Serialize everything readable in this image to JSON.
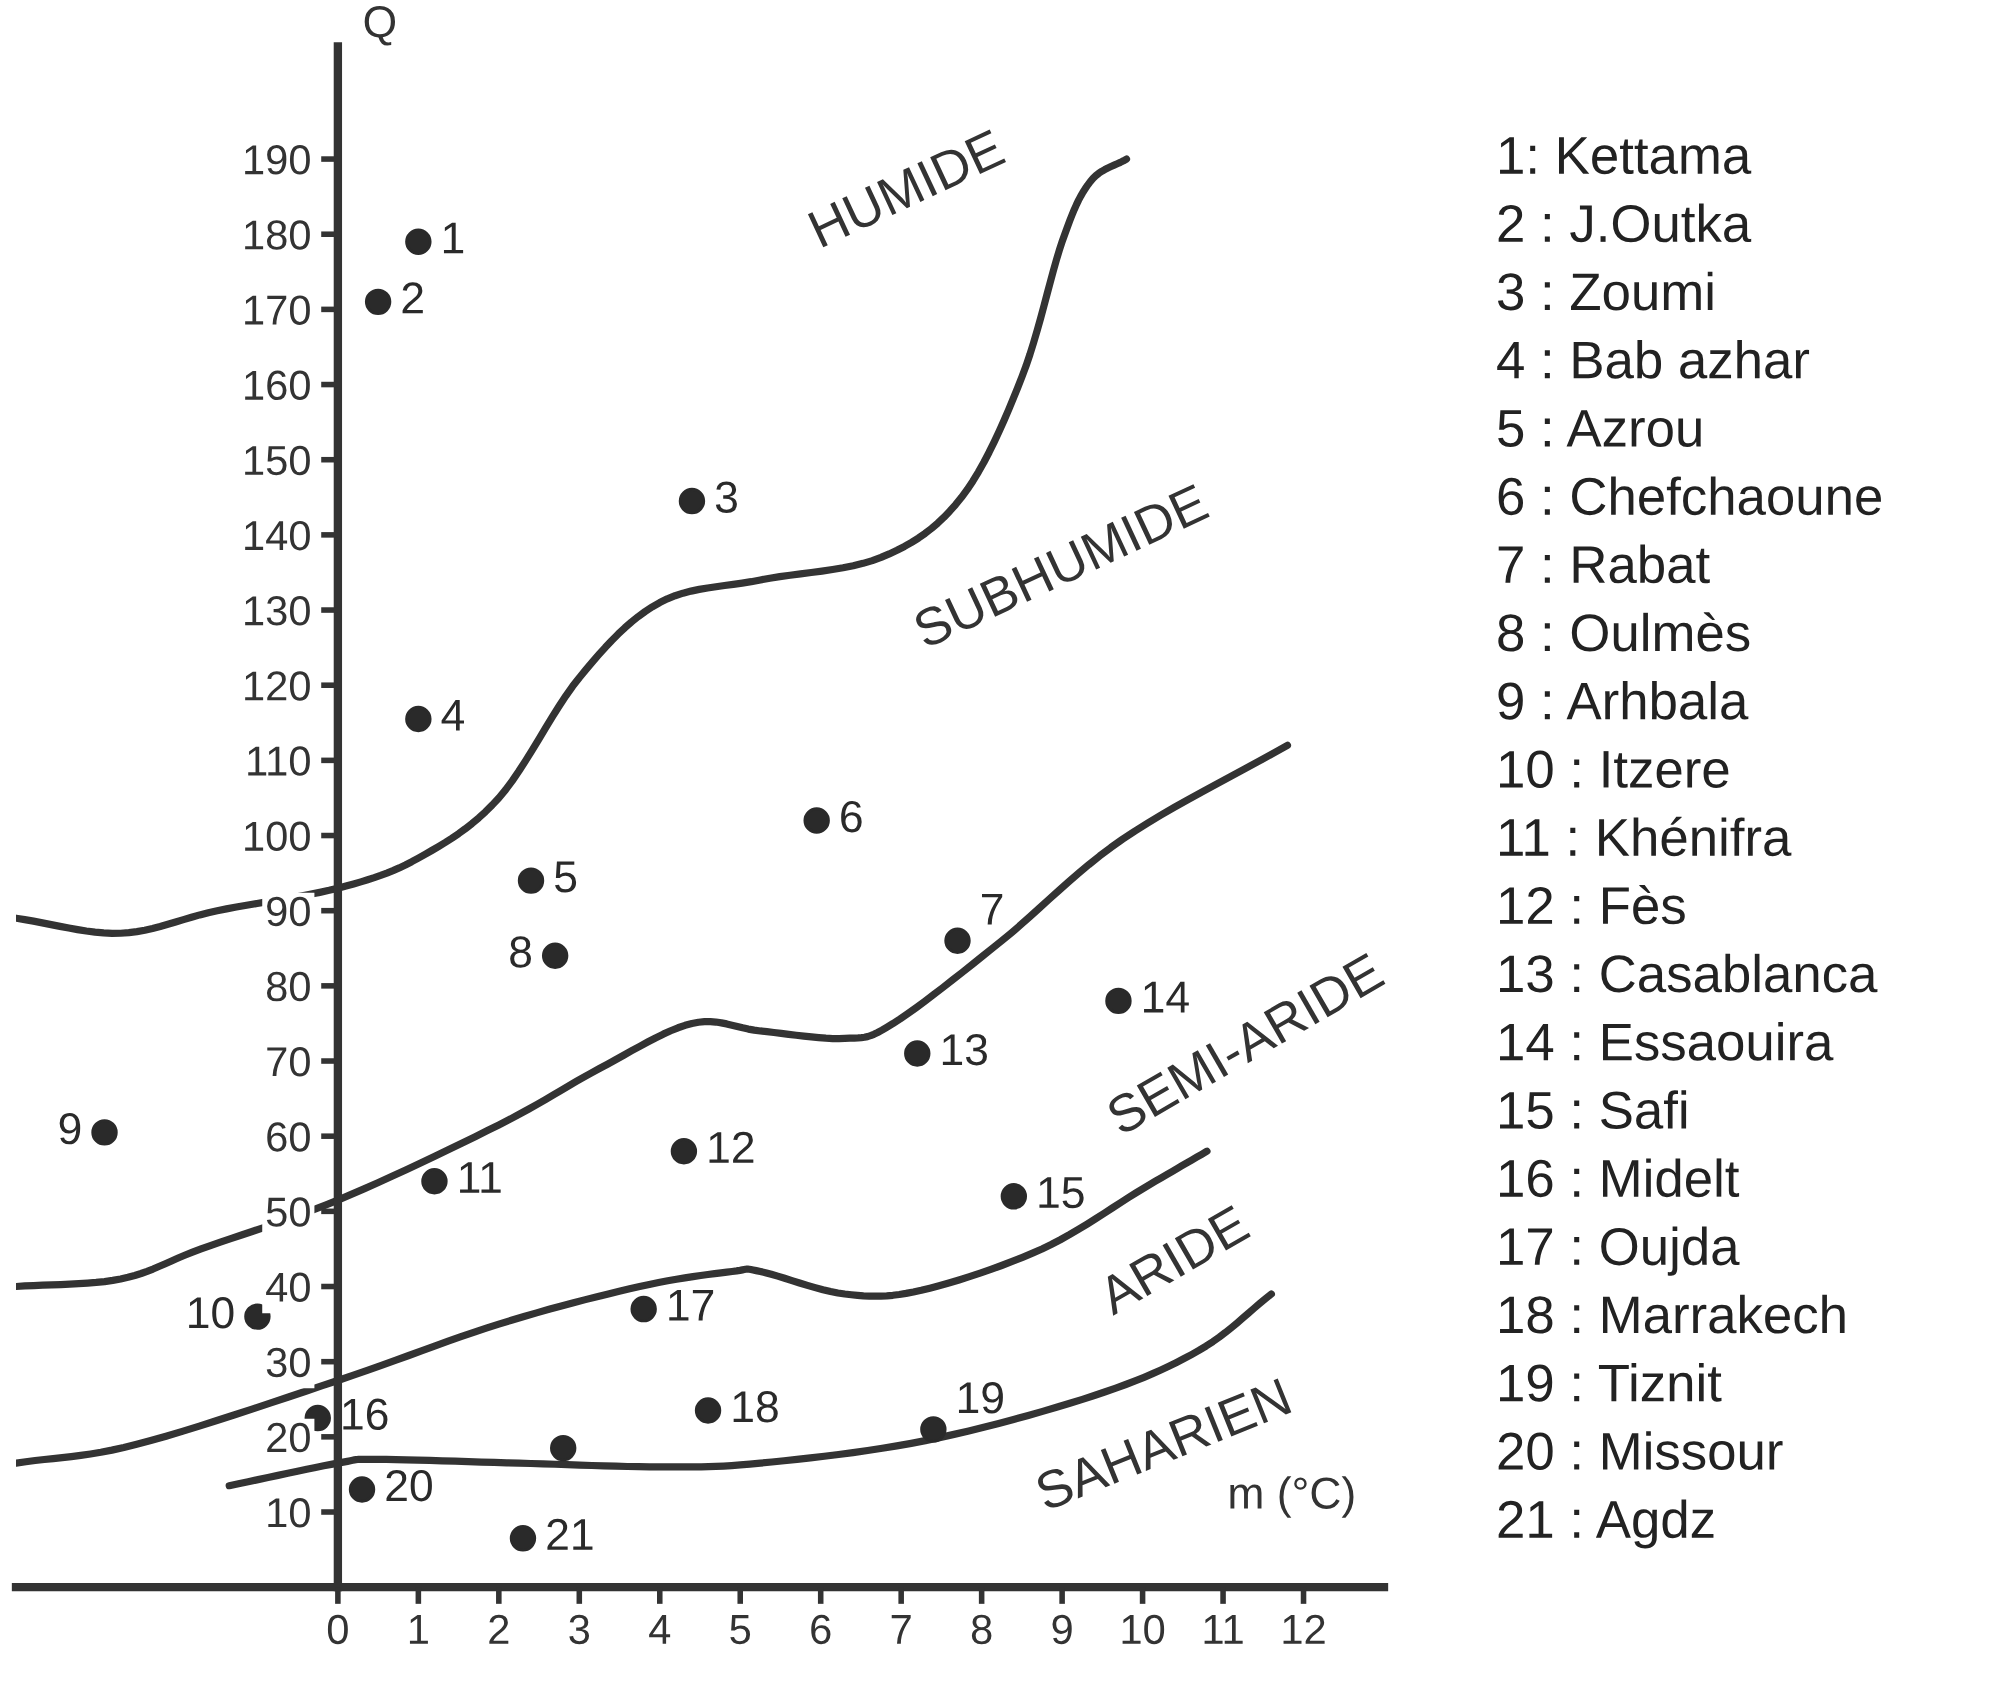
{
  "chart_data": {
    "type": "scatter",
    "xlabel": "m (°C)",
    "ylabel": "Q",
    "xlim": [
      -4,
      13
    ],
    "ylim": [
      0,
      205
    ],
    "xticks": [
      0,
      1,
      2,
      3,
      4,
      5,
      6,
      7,
      8,
      9,
      10,
      11,
      12
    ],
    "yticks": [
      10,
      20,
      30,
      40,
      50,
      60,
      70,
      80,
      90,
      100,
      110,
      120,
      130,
      140,
      150,
      160,
      170,
      180,
      190
    ],
    "grid": false,
    "legend": false,
    "series": [
      {
        "name": "1",
        "marker": "circle",
        "color": "#2a2a2a",
        "x": [
          1.0
        ],
        "values": [
          179
        ]
      },
      {
        "name": "2",
        "marker": "circle",
        "color": "#2a2a2a",
        "x": [
          0.5
        ],
        "values": [
          171
        ]
      },
      {
        "name": "3",
        "marker": "circle",
        "color": "#2a2a2a",
        "x": [
          4.4
        ],
        "values": [
          144.5
        ]
      },
      {
        "name": "4",
        "marker": "circle",
        "color": "#2a2a2a",
        "x": [
          1.0
        ],
        "values": [
          115.5
        ]
      },
      {
        "name": "5",
        "marker": "circle",
        "color": "#2a2a2a",
        "x": [
          2.4
        ],
        "values": [
          94
        ]
      },
      {
        "name": "6",
        "marker": "circle",
        "color": "#2a2a2a",
        "x": [
          5.95
        ],
        "values": [
          102
        ]
      },
      {
        "name": "7",
        "marker": "circle",
        "color": "#2a2a2a",
        "x": [
          7.7
        ],
        "values": [
          86
        ]
      },
      {
        "name": "8",
        "marker": "circle",
        "color": "#2a2a2a",
        "x": [
          2.7
        ],
        "values": [
          84
        ]
      },
      {
        "name": "9",
        "marker": "circle",
        "color": "#2a2a2a",
        "x": [
          -2.9
        ],
        "values": [
          60.5
        ]
      },
      {
        "name": "10",
        "marker": "circle",
        "color": "#2a2a2a",
        "x": [
          -1.0
        ],
        "values": [
          36
        ]
      },
      {
        "name": "11",
        "marker": "circle",
        "color": "#2a2a2a",
        "x": [
          1.2
        ],
        "values": [
          54
        ]
      },
      {
        "name": "12",
        "marker": "circle",
        "color": "#2a2a2a",
        "x": [
          4.3
        ],
        "values": [
          58
        ]
      },
      {
        "name": "13",
        "marker": "circle",
        "color": "#2a2a2a",
        "x": [
          7.2
        ],
        "values": [
          71
        ]
      },
      {
        "name": "14",
        "marker": "circle",
        "color": "#2a2a2a",
        "x": [
          9.7
        ],
        "values": [
          78
        ]
      },
      {
        "name": "15",
        "marker": "circle",
        "color": "#2a2a2a",
        "x": [
          8.4
        ],
        "values": [
          52
        ]
      },
      {
        "name": "16",
        "marker": "circle",
        "color": "#2a2a2a",
        "x": [
          -0.25
        ],
        "values": [
          22.5
        ]
      },
      {
        "name": "17",
        "marker": "circle",
        "color": "#2a2a2a",
        "x": [
          3.8
        ],
        "values": [
          37
        ]
      },
      {
        "name": "18",
        "marker": "circle",
        "color": "#2a2a2a",
        "x": [
          4.6
        ],
        "values": [
          23.5
        ]
      },
      {
        "name": "19",
        "marker": "circle",
        "color": "#2a2a2a",
        "x": [
          7.4
        ],
        "values": [
          21
        ]
      },
      {
        "name": "20",
        "marker": "circle",
        "color": "#2a2a2a",
        "x": [
          0.3
        ],
        "values": [
          13
        ]
      },
      {
        "name": "21",
        "marker": "circle",
        "color": "#2a2a2a",
        "x": [
          2.3
        ],
        "values": [
          6.5
        ]
      },
      {
        "marker": "circle",
        "color": "#2a2a2a",
        "x": [
          2.8
        ],
        "values": [
          18.5
        ]
      },
      {
        "type": "line",
        "color": "#333333",
        "x": [
          -4.0,
          -2.7,
          -1.5,
          0.0,
          1.0,
          2.0,
          3.0,
          4.0,
          5.25,
          6.75,
          7.75,
          8.5,
          9.0,
          9.35,
          9.8
        ],
        "values": [
          89,
          87,
          90,
          93,
          97,
          105,
          121,
          131,
          134,
          137,
          145,
          161,
          179,
          187,
          190
        ]
      },
      {
        "type": "line",
        "color": "#333333",
        "x": [
          -4.0,
          -2.7,
          -1.7,
          0.0,
          2.0,
          3.25,
          4.4,
          5.25,
          6.3,
          6.9,
          8.25,
          9.75,
          11.8
        ],
        "values": [
          40,
          41,
          45,
          51.5,
          61.5,
          69,
          75,
          74,
          73,
          75,
          86,
          99.5,
          112
        ]
      },
      {
        "type": "line",
        "color": "#333333",
        "x": [
          -4.0,
          -2.5,
          0.0,
          2.0,
          3.75,
          4.9,
          5.25,
          6.3,
          7.25,
          8.75,
          10.0,
          10.8
        ],
        "values": [
          16.5,
          19,
          27.5,
          35,
          40,
          42,
          42,
          39,
          39.5,
          45,
          53,
          58
        ]
      },
      {
        "type": "line",
        "color": "#333333",
        "x": [
          -1.35,
          0.0,
          0.5,
          2.25,
          4.0,
          5.25,
          7.3,
          9.4,
          10.7,
          11.6
        ],
        "values": [
          13.5,
          16.5,
          17,
          16.5,
          16,
          16.5,
          19.5,
          25.5,
          31.5,
          39
        ]
      }
    ],
    "annotations": [
      "HUMIDE",
      "SUBHUMIDE",
      "SEMI-ARIDE",
      "ARIDE",
      "SAHARIEN",
      "1: Kettama",
      "2 : J.Outka",
      "3 : Zoumi",
      "4 : Bab azhar",
      "5 : Azrou",
      "6 : Chefchaoune",
      "7 : Rabat",
      "8 : Oulmès",
      "9 : Arhbala",
      "10 : Itzere",
      "11 : Khénifra",
      "12 : Fès",
      "13 : Casablanca",
      "14 : Essaouira",
      "15 : Safi",
      "16 : Midelt",
      "17 : Oujda",
      "18 : Marrakech",
      "19 : Tiznit",
      "20 : Missour",
      "21 : Agdz"
    ]
  }
}
